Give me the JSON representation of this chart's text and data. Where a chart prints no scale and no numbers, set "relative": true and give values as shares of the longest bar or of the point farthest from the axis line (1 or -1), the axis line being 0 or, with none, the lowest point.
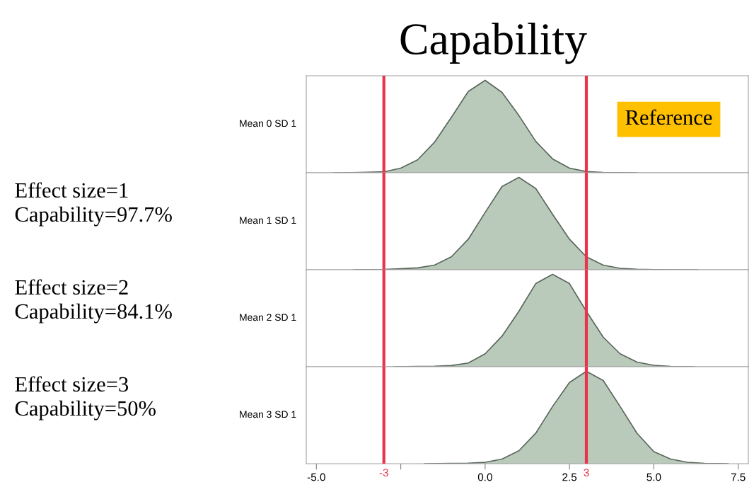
{
  "chart_data": [
    {
      "type": "area",
      "title": "Capability",
      "ylabel": "Mean 0 SD 1",
      "relative": true,
      "tick_labels": false,
      "xlim": [
        -5.3,
        7.8
      ],
      "annotations": [
        "Reference"
      ],
      "x": [
        -4.5,
        -4,
        -3.5,
        -3,
        -2.5,
        -2,
        -1.5,
        -1,
        -0.5,
        0,
        0.5,
        1,
        1.5,
        2,
        2.5,
        3,
        3.5,
        4,
        4.5
      ],
      "series": [
        {
          "color": "#b9cabb",
          "values": [
            0,
            0.002,
            0.005,
            0.01,
            0.05,
            0.14,
            0.33,
            0.6,
            0.88,
            1,
            0.87,
            0.62,
            0.34,
            0.15,
            0.05,
            0.012,
            0.004,
            0.002,
            0
          ]
        }
      ],
      "ref_lines": [
        {
          "axis": "x",
          "value": -3,
          "color": "#e8334a"
        },
        {
          "axis": "x",
          "value": 3,
          "color": "#e8334a"
        }
      ]
    },
    {
      "type": "area",
      "ylabel": "Mean 1 SD 1",
      "relative": true,
      "tick_labels": false,
      "xlim": [
        -5.3,
        7.8
      ],
      "annotations": [
        "Effect size=1\nCapability=97.7%"
      ],
      "x": [
        -3.9,
        -3,
        -2.5,
        -2,
        -1.5,
        -1,
        -0.5,
        0,
        0.5,
        1,
        1.5,
        2,
        2.5,
        3,
        3.5,
        4,
        4.5,
        5,
        6.3
      ],
      "series": [
        {
          "color": "#b9cabb",
          "values": [
            0,
            0.003,
            0.01,
            0.02,
            0.05,
            0.14,
            0.33,
            0.62,
            0.9,
            1,
            0.88,
            0.6,
            0.33,
            0.14,
            0.05,
            0.015,
            0.005,
            0.002,
            0
          ]
        }
      ],
      "ref_lines": [
        {
          "axis": "x",
          "value": -3,
          "color": "#e8334a"
        },
        {
          "axis": "x",
          "value": 3,
          "color": "#e8334a"
        }
      ]
    },
    {
      "type": "area",
      "ylabel": "Mean 2 SD 1",
      "relative": true,
      "tick_labels": false,
      "xlim": [
        -5.3,
        7.8
      ],
      "annotations": [
        "Effect size=2\nCapability=84.1%"
      ],
      "x": [
        -2.7,
        -2,
        -1.5,
        -1,
        -0.5,
        0,
        0.5,
        1,
        1.5,
        2,
        2.5,
        3,
        3.5,
        4,
        4.5,
        5,
        5.5,
        6.2
      ],
      "series": [
        {
          "color": "#b9cabb",
          "values": [
            0,
            0.003,
            0.005,
            0.012,
            0.04,
            0.14,
            0.33,
            0.6,
            0.9,
            1,
            0.9,
            0.6,
            0.32,
            0.14,
            0.05,
            0.015,
            0.004,
            0
          ]
        }
      ],
      "ref_lines": [
        {
          "axis": "x",
          "value": -3,
          "color": "#e8334a"
        },
        {
          "axis": "x",
          "value": 3,
          "color": "#e8334a"
        }
      ]
    },
    {
      "type": "area",
      "ylabel": "Mean 3 SD 1",
      "relative": true,
      "tick_labels": "x",
      "xlim": [
        -5.3,
        7.8
      ],
      "annotations": [
        "Effect size=3\nCapability=50%"
      ],
      "xticks": [
        {
          "value": -5,
          "label": "-5.0"
        },
        {
          "value": -2.5,
          "label": null
        },
        {
          "value": 0,
          "label": "0.0"
        },
        2.5,
        {
          "value": 5,
          "label": "5.0"
        },
        7.5
      ],
      "x": [
        -1.8,
        -1,
        -0.5,
        0,
        0.5,
        1,
        1.5,
        2,
        2.5,
        3,
        3.5,
        4,
        4.5,
        5,
        5.5,
        6,
        6.5,
        7.2
      ],
      "series": [
        {
          "color": "#b9cabb",
          "values": [
            0,
            0.003,
            0.006,
            0.015,
            0.05,
            0.14,
            0.33,
            0.62,
            0.88,
            1,
            0.9,
            0.62,
            0.33,
            0.13,
            0.05,
            0.015,
            0.004,
            0
          ]
        }
      ],
      "ref_lines": [
        {
          "axis": "x",
          "value": -3,
          "label": "-3",
          "color": "#e8334a"
        },
        {
          "axis": "x",
          "value": 3,
          "label": "3",
          "color": "#e8334a"
        }
      ]
    }
  ]
}
